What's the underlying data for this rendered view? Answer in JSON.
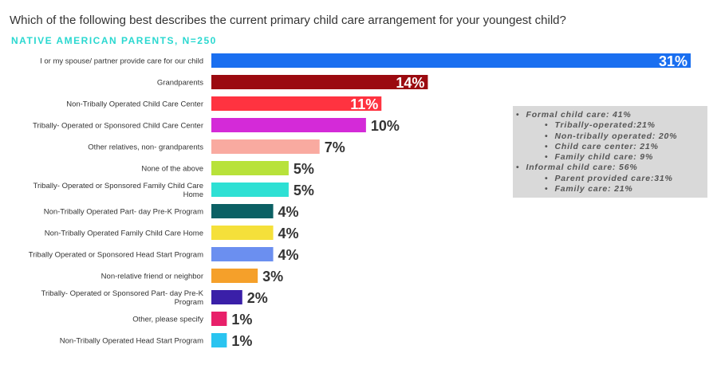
{
  "title": "Which of the following best describes the current primary child care arrangement for your youngest child?",
  "subtitle": "NATIVE AMERICAN PARENTS, N=250",
  "chart_data": {
    "type": "bar",
    "orientation": "horizontal",
    "title": "Which of the following best describes the current primary child care arrangement for your youngest child?",
    "subtitle": "NATIVE AMERICAN PARENTS, N=250",
    "categories": [
      "I or my spouse/ partner provide care for our child",
      "Grandparents",
      "Non-Tribally Operated Child Care Center",
      "Tribally- Operated or Sponsored Child Care Center",
      "Other relatives, non- grandparents",
      "None of the above",
      "Tribally- Operated or Sponsored Family Child Care Home",
      "Non-Tribally Operated Part- day Pre-K Program",
      "Non-Tribally Operated Family Child Care Home",
      "Tribally Operated or Sponsored Head Start Program",
      "Non-relative friend or neighbor",
      "Tribally- Operated or Sponsored Part- day Pre-K Program",
      "Other, please specify",
      "Non-Tribally Operated Head Start Program"
    ],
    "values": [
      31,
      14,
      11,
      10,
      7,
      5,
      5,
      4,
      4,
      4,
      3,
      2,
      1,
      1
    ],
    "data_labels": [
      "31%",
      "14%",
      "11%",
      "10%",
      "7%",
      "5%",
      "5%",
      "4%",
      "4%",
      "4%",
      "3%",
      "2%",
      "1%",
      "1%"
    ],
    "colors": [
      "#1a6ff0",
      "#9b0a10",
      "#ff3340",
      "#d42ad8",
      "#f9aaa0",
      "#b8e23a",
      "#2ee0d4",
      "#0b6064",
      "#f5e03a",
      "#6b8ff0",
      "#f5a02a",
      "#3a1fa8",
      "#e8206a",
      "#2ac4f0"
    ],
    "xlim": [
      0,
      31
    ],
    "grid": false,
    "legend": "none"
  },
  "note": {
    "items": [
      {
        "level": 1,
        "text": "Formal child care: 41%"
      },
      {
        "level": 2,
        "text": "Tribally-operated:21%"
      },
      {
        "level": 2,
        "text": "Non-tribally operated: 20%"
      },
      {
        "level": 2,
        "text": "Child care center: 21%"
      },
      {
        "level": 2,
        "text": "Family child care: 9%"
      },
      {
        "level": 1,
        "text": "Informal child care: 56%"
      },
      {
        "level": 2,
        "text": "Parent provided care:31%"
      },
      {
        "level": 2,
        "text": "Family care: 21%"
      }
    ]
  }
}
